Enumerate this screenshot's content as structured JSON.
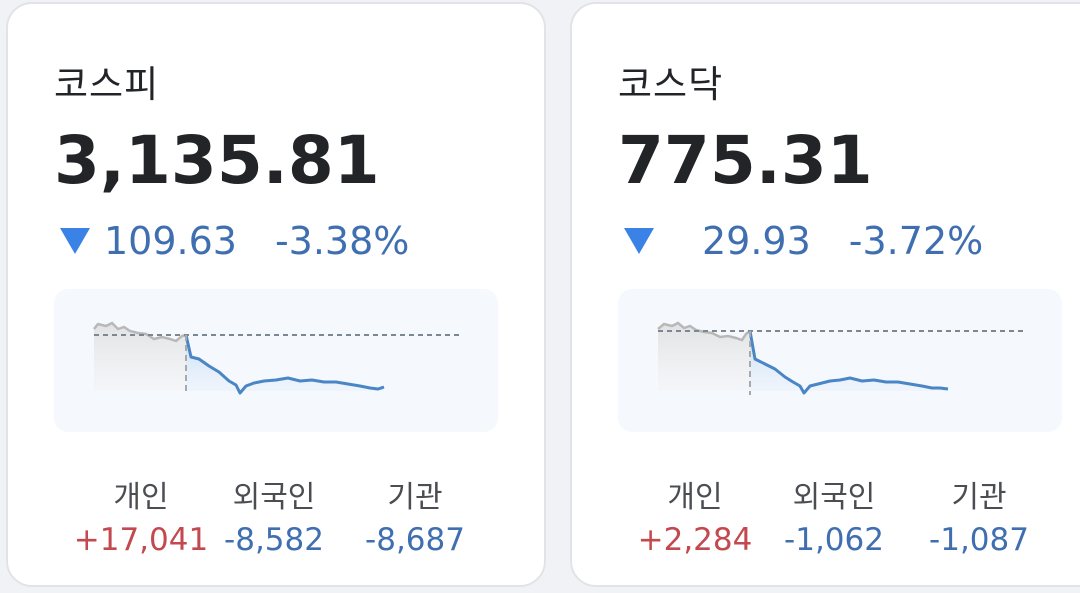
{
  "cards": [
    {
      "name": "코스피",
      "value": "3,135.81",
      "direction": "down",
      "change": "109.63",
      "change_pct": "-3.38%",
      "investors": [
        {
          "label": "개인",
          "value": "+17,041",
          "sign": "pos"
        },
        {
          "label": "외국인",
          "value": "-8,582",
          "sign": "neg"
        },
        {
          "label": "기관",
          "value": "-8,687",
          "sign": "neg"
        }
      ]
    },
    {
      "name": "코스닥",
      "value": "775.31",
      "direction": "down",
      "change": "29.93",
      "change_pct": "-3.72%",
      "investors": [
        {
          "label": "개인",
          "value": "+2,284",
          "sign": "pos"
        },
        {
          "label": "외국인",
          "value": "-1,062",
          "sign": "neg"
        },
        {
          "label": "기관",
          "value": "-1,087",
          "sign": "neg"
        }
      ]
    }
  ],
  "colors": {
    "down": "#3b82e6",
    "negative_text": "#3f6fb0",
    "positive_text": "#c4494f",
    "line": "#4a86c5",
    "prev_line": "#b8b8b8",
    "chart_bg": "#f5f8fd"
  },
  "icons": {
    "down_arrow": "down-triangle-icon"
  }
}
